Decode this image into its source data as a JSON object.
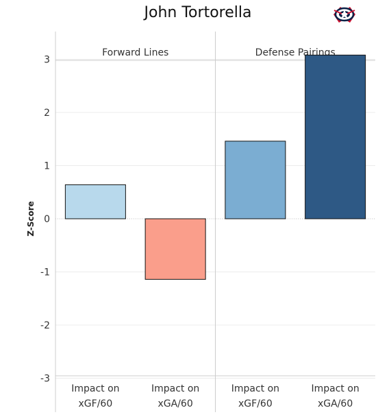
{
  "title": "John Tortorella",
  "logo": {
    "icon": "blue-jackets-logo-icon",
    "colors": {
      "navy": "#0b2147",
      "red": "#c8102e",
      "white": "#ffffff"
    }
  },
  "chart_data": {
    "type": "bar",
    "ylabel": "Z-Score",
    "ylim": [
      -3.3,
      3.6
    ],
    "yticks": [
      3,
      2,
      1,
      0,
      -1,
      -2,
      -3
    ],
    "grid": true,
    "panels": [
      {
        "name": "Forward Lines",
        "categories": [
          "Impact on xGF/60",
          "Impact on xGA/60"
        ],
        "values": [
          0.64,
          -1.14
        ],
        "colors": [
          "#b8d9ec",
          "#fa9e8b"
        ]
      },
      {
        "name": "Defense Pairings",
        "categories": [
          "Impact on xGF/60",
          "Impact on xGA/60"
        ],
        "values": [
          1.46,
          3.08
        ],
        "colors": [
          "#7badd2",
          "#2e5985"
        ]
      }
    ],
    "category_labels": [
      [
        "Impact on",
        "xGF/60"
      ],
      [
        "Impact on",
        "xGA/60"
      ]
    ]
  }
}
